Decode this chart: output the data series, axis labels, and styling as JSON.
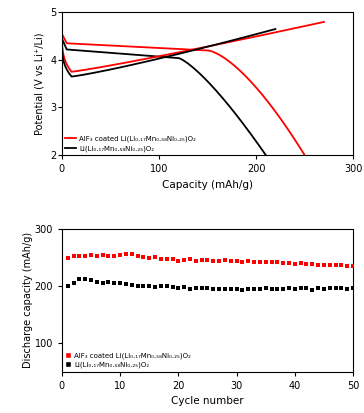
{
  "top_plot": {
    "xlabel": "Capacity (mAh/g)",
    "ylabel": "Potential (V vs Li⁺/Li)",
    "xlim": [
      0,
      300
    ],
    "ylim": [
      2.0,
      5.0
    ],
    "yticks": [
      2.0,
      3.0,
      4.0,
      5.0
    ],
    "xticks": [
      0,
      100,
      200,
      300
    ],
    "red_label": "AlF₃ coated Li(Li₀.₁₇Mn₀.₅₈Ni₀.₂₅)O₂",
    "black_label": "Li(Li₀.₁₇Mn₀.₅₈Ni₀.₂₅)O₂"
  },
  "bottom_plot": {
    "xlabel": "Cycle number",
    "ylabel": "Discharge capacity (mAh/g)",
    "xlim": [
      0,
      50
    ],
    "ylim": [
      50,
      300
    ],
    "yticks": [
      100,
      200,
      300
    ],
    "xticks": [
      0,
      10,
      20,
      30,
      40,
      50
    ],
    "red_label": "AlF₃ coated Li(Li₀.₁₇Mn₀.₅₈Ni₀.₂₅)O₂",
    "black_label": "Li(Li₀.₁₇Mn₀.₅₈Ni₀.₂₅)O₂"
  }
}
